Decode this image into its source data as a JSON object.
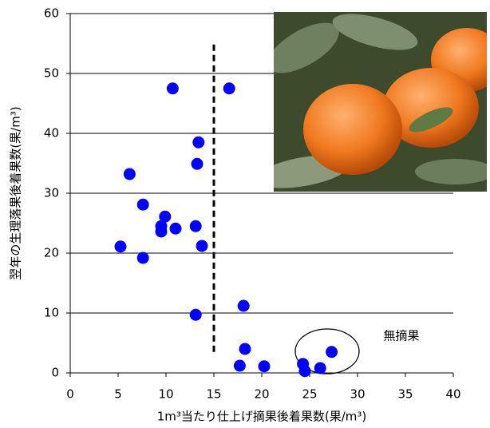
{
  "chart_data": {
    "type": "scatter",
    "x_label": "1m³当たり仕上げ摘果後着果数(果/m³)",
    "y_label": "翌年の生理落果後着果数(果/m³)",
    "annotation": "無摘果",
    "color": "#0000ff",
    "x": [
      5.25,
      6.2,
      7.6,
      7.6,
      9.5,
      9.5,
      9.9,
      11,
      10.7,
      13.1,
      13.75,
      13.4,
      13.25,
      13.1,
      16.6,
      18.1,
      18.25,
      17.7,
      20.25,
      24.3,
      24.5,
      26.1,
      27.3
    ],
    "values": [
      21.1,
      33.2,
      28.1,
      19.2,
      24.5,
      23.6,
      26.1,
      24.1,
      47.5,
      24.5,
      21.2,
      38.5,
      34.9,
      9.7,
      47.5,
      11.2,
      4.0,
      1.2,
      1.1,
      1.5,
      0.3,
      0.8,
      3.5
    ],
    "xlim": [
      0,
      40
    ],
    "xticks": [
      0,
      5,
      10,
      15,
      20,
      25,
      30,
      35,
      40
    ],
    "ylim": [
      0,
      60
    ],
    "yticks": [
      0,
      10,
      20,
      30,
      40,
      50,
      60
    ],
    "grid": true,
    "vline": {
      "x": 15,
      "y": [
        3.5,
        55
      ]
    }
  }
}
